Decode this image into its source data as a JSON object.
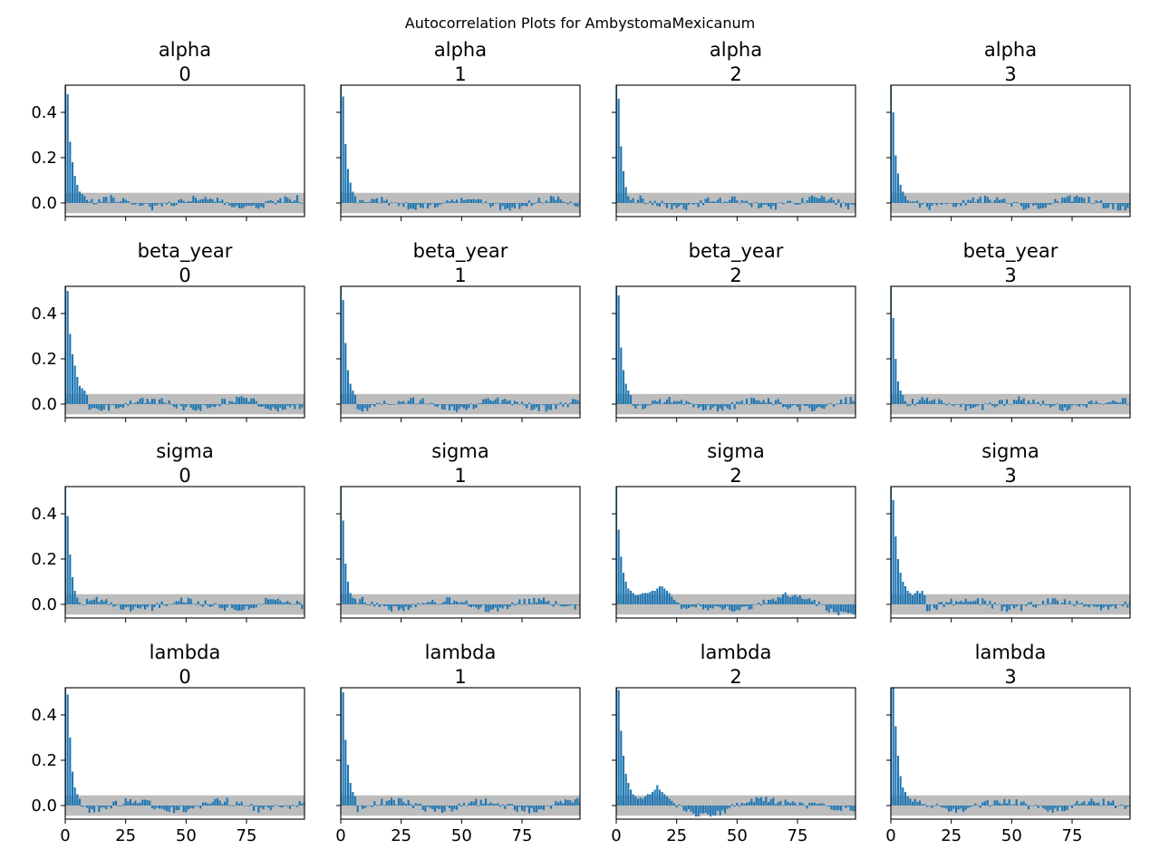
{
  "figure": {
    "suptitle": "Autocorrelation Plots for AmbystomaMexicanum"
  },
  "style": {
    "bar_color": "#1f77b4",
    "band_color": "#bdbdbd",
    "axes_color": "#000000",
    "background": "#ffffff"
  },
  "chart_data": [
    {
      "type": "bar",
      "row": 0,
      "col": 0,
      "title": [
        "alpha",
        "0"
      ],
      "xlim": [
        0,
        99
      ],
      "ylim": [
        -0.06,
        0.52
      ],
      "x_ticks": [
        0,
        25,
        50,
        75
      ],
      "y_ticks": [
        0.0,
        0.2,
        0.4
      ],
      "x_tick_labels": [
        "0",
        "25",
        "50",
        "75"
      ],
      "y_tick_labels": [
        "0.0",
        "0.2",
        "0.4"
      ],
      "show_x_tick_labels": false,
      "show_y_tick_labels": true,
      "confidence_band": [
        -0.045,
        0.045
      ],
      "shape": {
        "values": [
          1,
          0.48,
          0.27,
          0.18,
          0.12,
          0.08,
          0.05,
          0.04,
          0.03
        ],
        "noise_amp": 0.035,
        "tail": "flat",
        "seed": 11
      }
    },
    {
      "type": "bar",
      "row": 0,
      "col": 1,
      "title": [
        "alpha",
        "1"
      ],
      "xlim": [
        0,
        99
      ],
      "ylim": [
        -0.06,
        0.52
      ],
      "x_ticks": [
        0,
        25,
        50,
        75
      ],
      "y_ticks": [
        0.0,
        0.2,
        0.4
      ],
      "x_tick_labels": [
        "0",
        "25",
        "50",
        "75"
      ],
      "y_tick_labels": [
        "0.0",
        "0.2",
        "0.4"
      ],
      "show_x_tick_labels": false,
      "show_y_tick_labels": false,
      "confidence_band": [
        -0.045,
        0.045
      ],
      "shape": {
        "values": [
          1,
          0.47,
          0.26,
          0.15,
          0.09,
          0.05,
          0.03
        ],
        "noise_amp": 0.035,
        "tail": "flat",
        "seed": 12
      }
    },
    {
      "type": "bar",
      "row": 0,
      "col": 2,
      "title": [
        "alpha",
        "2"
      ],
      "xlim": [
        0,
        99
      ],
      "ylim": [
        -0.06,
        0.52
      ],
      "x_ticks": [
        0,
        25,
        50,
        75
      ],
      "y_ticks": [
        0.0,
        0.2,
        0.4
      ],
      "x_tick_labels": [
        "0",
        "25",
        "50",
        "75"
      ],
      "y_tick_labels": [
        "0.0",
        "0.2",
        "0.4"
      ],
      "show_x_tick_labels": false,
      "show_y_tick_labels": false,
      "confidence_band": [
        -0.045,
        0.045
      ],
      "shape": {
        "values": [
          1,
          0.46,
          0.25,
          0.14,
          0.07,
          0.03
        ],
        "noise_amp": 0.035,
        "tail": "flat",
        "seed": 13
      }
    },
    {
      "type": "bar",
      "row": 0,
      "col": 3,
      "title": [
        "alpha",
        "3"
      ],
      "xlim": [
        0,
        99
      ],
      "ylim": [
        -0.06,
        0.52
      ],
      "x_ticks": [
        0,
        25,
        50,
        75
      ],
      "y_ticks": [
        0.0,
        0.2,
        0.4
      ],
      "x_tick_labels": [
        "0",
        "25",
        "50",
        "75"
      ],
      "y_tick_labels": [
        "0.0",
        "0.2",
        "0.4"
      ],
      "show_x_tick_labels": false,
      "show_y_tick_labels": false,
      "confidence_band": [
        -0.045,
        0.045
      ],
      "shape": {
        "values": [
          1,
          0.4,
          0.21,
          0.13,
          0.08,
          0.05,
          0.03
        ],
        "noise_amp": 0.035,
        "tail": "flat",
        "seed": 14
      }
    },
    {
      "type": "bar",
      "row": 1,
      "col": 0,
      "title": [
        "beta_year",
        "0"
      ],
      "xlim": [
        0,
        99
      ],
      "ylim": [
        -0.06,
        0.52
      ],
      "x_ticks": [
        0,
        25,
        50,
        75
      ],
      "y_ticks": [
        0.0,
        0.2,
        0.4
      ],
      "x_tick_labels": [
        "0",
        "25",
        "50",
        "75"
      ],
      "y_tick_labels": [
        "0.0",
        "0.2",
        "0.4"
      ],
      "show_x_tick_labels": false,
      "show_y_tick_labels": true,
      "confidence_band": [
        -0.045,
        0.045
      ],
      "shape": {
        "values": [
          1,
          0.5,
          0.31,
          0.22,
          0.17,
          0.12,
          0.08,
          0.07,
          0.06,
          0.04
        ],
        "noise_amp": 0.035,
        "tail": "flat",
        "seed": 21
      }
    },
    {
      "type": "bar",
      "row": 1,
      "col": 1,
      "title": [
        "beta_year",
        "1"
      ],
      "xlim": [
        0,
        99
      ],
      "ylim": [
        -0.06,
        0.52
      ],
      "x_ticks": [
        0,
        25,
        50,
        75
      ],
      "y_ticks": [
        0.0,
        0.2,
        0.4
      ],
      "x_tick_labels": [
        "0",
        "25",
        "50",
        "75"
      ],
      "y_tick_labels": [
        "0.0",
        "0.2",
        "0.4"
      ],
      "show_x_tick_labels": false,
      "show_y_tick_labels": false,
      "confidence_band": [
        -0.045,
        0.045
      ],
      "shape": {
        "values": [
          1,
          0.46,
          0.27,
          0.15,
          0.09,
          0.06,
          0.04
        ],
        "noise_amp": 0.035,
        "tail": "flat",
        "seed": 22
      }
    },
    {
      "type": "bar",
      "row": 1,
      "col": 2,
      "title": [
        "beta_year",
        "2"
      ],
      "xlim": [
        0,
        99
      ],
      "ylim": [
        -0.06,
        0.52
      ],
      "x_ticks": [
        0,
        25,
        50,
        75
      ],
      "y_ticks": [
        0.0,
        0.2,
        0.4
      ],
      "x_tick_labels": [
        "0",
        "25",
        "50",
        "75"
      ],
      "y_tick_labels": [
        "0.0",
        "0.2",
        "0.4"
      ],
      "show_x_tick_labels": false,
      "show_y_tick_labels": false,
      "confidence_band": [
        -0.045,
        0.045
      ],
      "shape": {
        "values": [
          1,
          0.48,
          0.25,
          0.15,
          0.09,
          0.06,
          0.04
        ],
        "noise_amp": 0.035,
        "tail": "flat",
        "seed": 23
      }
    },
    {
      "type": "bar",
      "row": 1,
      "col": 3,
      "title": [
        "beta_year",
        "3"
      ],
      "xlim": [
        0,
        99
      ],
      "ylim": [
        -0.06,
        0.52
      ],
      "x_ticks": [
        0,
        25,
        50,
        75
      ],
      "y_ticks": [
        0.0,
        0.2,
        0.4
      ],
      "x_tick_labels": [
        "0",
        "25",
        "50",
        "75"
      ],
      "y_tick_labels": [
        "0.0",
        "0.2",
        "0.4"
      ],
      "show_x_tick_labels": false,
      "show_y_tick_labels": false,
      "confidence_band": [
        -0.045,
        0.045
      ],
      "shape": {
        "values": [
          1,
          0.38,
          0.2,
          0.1,
          0.06,
          0.04
        ],
        "noise_amp": 0.035,
        "tail": "flat",
        "seed": 24
      }
    },
    {
      "type": "bar",
      "row": 2,
      "col": 0,
      "title": [
        "sigma",
        "0"
      ],
      "xlim": [
        0,
        99
      ],
      "ylim": [
        -0.06,
        0.52
      ],
      "x_ticks": [
        0,
        25,
        50,
        75
      ],
      "y_ticks": [
        0.0,
        0.2,
        0.4
      ],
      "x_tick_labels": [
        "0",
        "25",
        "50",
        "75"
      ],
      "y_tick_labels": [
        "0.0",
        "0.2",
        "0.4"
      ],
      "show_x_tick_labels": false,
      "show_y_tick_labels": true,
      "confidence_band": [
        -0.045,
        0.045
      ],
      "shape": {
        "values": [
          1,
          0.39,
          0.22,
          0.12,
          0.06,
          0.03
        ],
        "noise_amp": 0.035,
        "tail": "flat",
        "seed": 31
      }
    },
    {
      "type": "bar",
      "row": 2,
      "col": 1,
      "title": [
        "sigma",
        "1"
      ],
      "xlim": [
        0,
        99
      ],
      "ylim": [
        -0.06,
        0.52
      ],
      "x_ticks": [
        0,
        25,
        50,
        75
      ],
      "y_ticks": [
        0.0,
        0.2,
        0.4
      ],
      "x_tick_labels": [
        "0",
        "25",
        "50",
        "75"
      ],
      "y_tick_labels": [
        "0.0",
        "0.2",
        "0.4"
      ],
      "show_x_tick_labels": false,
      "show_y_tick_labels": false,
      "confidence_band": [
        -0.045,
        0.045
      ],
      "shape": {
        "values": [
          1,
          0.37,
          0.18,
          0.1,
          0.05,
          0.03
        ],
        "noise_amp": 0.035,
        "tail": "flat",
        "seed": 32
      }
    },
    {
      "type": "bar",
      "row": 2,
      "col": 2,
      "title": [
        "sigma",
        "2"
      ],
      "xlim": [
        0,
        99
      ],
      "ylim": [
        -0.06,
        0.52
      ],
      "x_ticks": [
        0,
        25,
        50,
        75
      ],
      "y_ticks": [
        0.0,
        0.2,
        0.4
      ],
      "x_tick_labels": [
        "0",
        "25",
        "50",
        "75"
      ],
      "y_tick_labels": [
        "0.0",
        "0.2",
        "0.4"
      ],
      "show_x_tick_labels": false,
      "show_y_tick_labels": false,
      "confidence_band": [
        -0.045,
        0.045
      ],
      "shape": {
        "values": [
          1,
          0.33,
          0.21,
          0.14,
          0.1,
          0.07,
          0.06,
          0.05,
          0.04,
          0.04,
          0.045,
          0.05,
          0.05,
          0.05,
          0.055,
          0.06,
          0.06,
          0.07,
          0.08,
          0.08,
          0.07,
          0.06,
          0.05,
          0.035,
          0.02,
          0.01
        ],
        "noise_amp": 0.03,
        "tail": "wave",
        "seed": 33
      }
    },
    {
      "type": "bar",
      "row": 2,
      "col": 3,
      "title": [
        "sigma",
        "3"
      ],
      "xlim": [
        0,
        99
      ],
      "ylim": [
        -0.06,
        0.52
      ],
      "x_ticks": [
        0,
        25,
        50,
        75
      ],
      "y_ticks": [
        0.0,
        0.2,
        0.4
      ],
      "x_tick_labels": [
        "0",
        "25",
        "50",
        "75"
      ],
      "y_tick_labels": [
        "0.0",
        "0.2",
        "0.4"
      ],
      "show_x_tick_labels": false,
      "show_y_tick_labels": false,
      "confidence_band": [
        -0.045,
        0.045
      ],
      "shape": {
        "values": [
          1,
          0.46,
          0.3,
          0.2,
          0.14,
          0.1,
          0.08,
          0.06,
          0.05,
          0.04,
          0.05,
          0.06,
          0.05,
          0.06,
          0.04
        ],
        "noise_amp": 0.035,
        "tail": "flat",
        "seed": 34
      }
    },
    {
      "type": "bar",
      "row": 3,
      "col": 0,
      "title": [
        "lambda",
        "0"
      ],
      "xlim": [
        0,
        99
      ],
      "ylim": [
        -0.06,
        0.52
      ],
      "x_ticks": [
        0,
        25,
        50,
        75
      ],
      "y_ticks": [
        0.0,
        0.2,
        0.4
      ],
      "x_tick_labels": [
        "0",
        "25",
        "50",
        "75"
      ],
      "y_tick_labels": [
        "0.0",
        "0.2",
        "0.4"
      ],
      "show_x_tick_labels": true,
      "show_y_tick_labels": true,
      "confidence_band": [
        -0.045,
        0.045
      ],
      "shape": {
        "values": [
          1,
          0.49,
          0.3,
          0.15,
          0.08,
          0.05,
          0.03
        ],
        "noise_amp": 0.035,
        "tail": "flat",
        "seed": 41
      }
    },
    {
      "type": "bar",
      "row": 3,
      "col": 1,
      "title": [
        "lambda",
        "1"
      ],
      "xlim": [
        0,
        99
      ],
      "ylim": [
        -0.06,
        0.52
      ],
      "x_ticks": [
        0,
        25,
        50,
        75
      ],
      "y_ticks": [
        0.0,
        0.2,
        0.4
      ],
      "x_tick_labels": [
        "0",
        "25",
        "50",
        "75"
      ],
      "y_tick_labels": [
        "0.0",
        "0.2",
        "0.4"
      ],
      "show_x_tick_labels": true,
      "show_y_tick_labels": false,
      "confidence_band": [
        -0.045,
        0.045
      ],
      "shape": {
        "values": [
          1,
          0.5,
          0.29,
          0.18,
          0.1,
          0.06,
          0.04
        ],
        "noise_amp": 0.035,
        "tail": "flat",
        "seed": 42
      }
    },
    {
      "type": "bar",
      "row": 3,
      "col": 2,
      "title": [
        "lambda",
        "2"
      ],
      "xlim": [
        0,
        99
      ],
      "ylim": [
        -0.06,
        0.52
      ],
      "x_ticks": [
        0,
        25,
        50,
        75
      ],
      "y_ticks": [
        0.0,
        0.2,
        0.4
      ],
      "x_tick_labels": [
        "0",
        "25",
        "50",
        "75"
      ],
      "y_tick_labels": [
        "0.0",
        "0.2",
        "0.4"
      ],
      "show_x_tick_labels": true,
      "show_y_tick_labels": false,
      "confidence_band": [
        -0.045,
        0.045
      ],
      "shape": {
        "values": [
          1,
          0.51,
          0.33,
          0.22,
          0.14,
          0.1,
          0.07,
          0.05,
          0.04,
          0.03,
          0.035,
          0.03,
          0.04,
          0.05,
          0.05,
          0.06,
          0.07,
          0.09,
          0.07,
          0.06,
          0.05,
          0.04,
          0.03,
          0.02,
          0.01
        ],
        "noise_amp": 0.03,
        "tail": "wave",
        "seed": 43
      }
    },
    {
      "type": "bar",
      "row": 3,
      "col": 3,
      "title": [
        "lambda",
        "3"
      ],
      "xlim": [
        0,
        99
      ],
      "ylim": [
        -0.06,
        0.52
      ],
      "x_ticks": [
        0,
        25,
        50,
        75
      ],
      "y_ticks": [
        0.0,
        0.2,
        0.4
      ],
      "x_tick_labels": [
        "0",
        "25",
        "50",
        "75"
      ],
      "y_tick_labels": [
        "0.0",
        "0.2",
        "0.4"
      ],
      "show_x_tick_labels": true,
      "show_y_tick_labels": false,
      "confidence_band": [
        -0.045,
        0.045
      ],
      "shape": {
        "values": [
          1,
          0.52,
          0.35,
          0.22,
          0.13,
          0.08,
          0.06,
          0.04,
          0.03
        ],
        "noise_amp": 0.035,
        "tail": "flat",
        "seed": 44
      }
    }
  ]
}
